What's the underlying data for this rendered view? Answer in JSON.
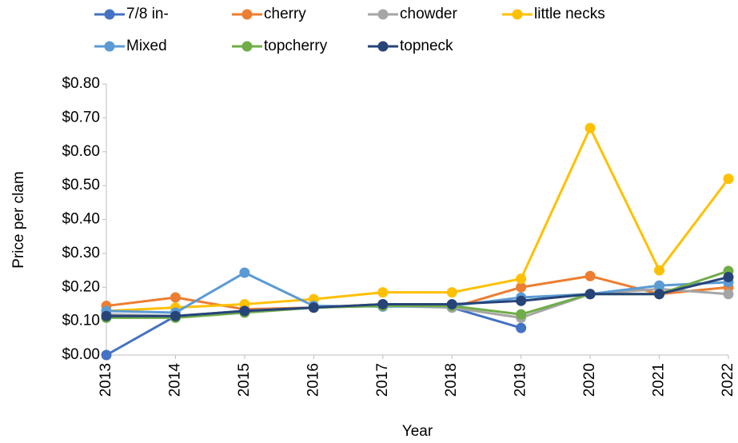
{
  "chart_data": {
    "type": "line",
    "x_label": "Year",
    "y_label": "Price per clam",
    "categories": [
      "2013",
      "2014",
      "2015",
      "2016",
      "2017",
      "2018",
      "2019",
      "2020",
      "2021",
      "2022"
    ],
    "series": [
      {
        "name": "7/8 in-",
        "color": "#4472c4",
        "values": [
          0.0,
          0.115,
          0.13,
          0.14,
          0.15,
          0.14,
          0.08,
          null,
          null,
          null
        ]
      },
      {
        "name": "cherry",
        "color": "#ed7d31",
        "values": [
          0.145,
          0.17,
          0.135,
          0.14,
          0.15,
          0.14,
          0.2,
          0.233,
          0.18,
          0.2
        ]
      },
      {
        "name": "chowder",
        "color": "#a5a5a5",
        "values": [
          0.12,
          0.115,
          0.13,
          0.14,
          0.145,
          0.14,
          0.11,
          0.18,
          0.195,
          0.18
        ]
      },
      {
        "name": "little necks",
        "color": "#ffc000",
        "values": [
          0.13,
          0.14,
          0.15,
          0.165,
          0.185,
          0.185,
          0.225,
          0.67,
          0.25,
          0.52
        ]
      },
      {
        "name": "Mixed",
        "color": "#5b9bd5",
        "values": [
          0.13,
          0.125,
          0.243,
          0.145,
          0.143,
          0.145,
          0.17,
          0.18,
          0.205,
          0.215
        ]
      },
      {
        "name": "topcherry",
        "color": "#70ad47",
        "values": [
          0.11,
          0.11,
          0.125,
          0.14,
          0.145,
          0.145,
          0.12,
          0.18,
          0.18,
          0.248
        ]
      },
      {
        "name": "topneck",
        "color": "#264478",
        "values": [
          0.115,
          0.115,
          0.13,
          0.14,
          0.15,
          0.15,
          0.16,
          0.18,
          0.18,
          0.23
        ]
      }
    ],
    "ylim": [
      0,
      0.8
    ],
    "yticks": [
      {
        "value": 0,
        "label": "$0.00"
      },
      {
        "value": 0.1,
        "label": "$0.10"
      },
      {
        "value": 0.2,
        "label": "$0.20"
      },
      {
        "value": 0.3,
        "label": "$0.30"
      },
      {
        "value": 0.4,
        "label": "$0.40"
      },
      {
        "value": 0.5,
        "label": "$0.50"
      },
      {
        "value": 0.6,
        "label": "$0.60"
      },
      {
        "value": 0.7,
        "label": "$0.70"
      },
      {
        "value": 0.8,
        "label": "$0.80"
      }
    ],
    "grid": false
  }
}
